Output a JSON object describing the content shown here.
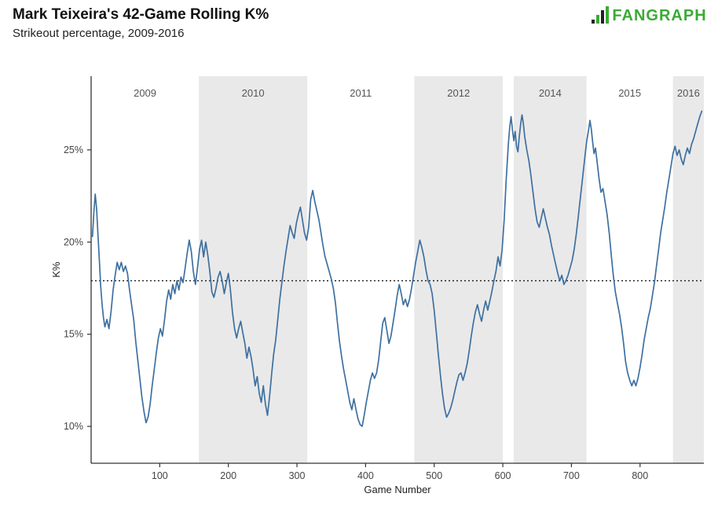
{
  "logo": {
    "text": "FANGRAPHS"
  },
  "colors": {
    "band": "#e9e9e9",
    "line": "#3e70a0",
    "axis": "#333333",
    "reference": "#1a1a1a",
    "logo_green": "#3aaa35",
    "logo_dark": "#222222"
  },
  "chart_data": {
    "type": "line",
    "title": "Mark Teixeira's 42-Game Rolling K%",
    "subtitle": "Strikeout percentage, 2009-2016",
    "xlabel": "Game Number",
    "ylabel": "K%",
    "xlim": [
      0,
      893
    ],
    "ylim": [
      8,
      29
    ],
    "x_ticks": [
      100,
      200,
      300,
      400,
      500,
      600,
      700,
      800
    ],
    "y_ticks": [
      {
        "v": 10,
        "label": "10%"
      },
      {
        "v": 15,
        "label": "15%"
      },
      {
        "v": 20,
        "label": "20%"
      },
      {
        "v": 25,
        "label": "25%"
      }
    ],
    "reference_line": {
      "value": 17.9,
      "style": "dotted"
    },
    "bands": [
      {
        "label": "2009",
        "start": 0,
        "end": 157,
        "shaded": false
      },
      {
        "label": "2010",
        "start": 157,
        "end": 315,
        "shaded": true
      },
      {
        "label": "2011",
        "start": 315,
        "end": 471,
        "shaded": false
      },
      {
        "label": "2012",
        "start": 471,
        "end": 600,
        "shaded": true
      },
      {
        "label": "",
        "start": 600,
        "end": 616,
        "shaded": false
      },
      {
        "label": "2014",
        "start": 616,
        "end": 722,
        "shaded": true
      },
      {
        "label": "2015",
        "start": 722,
        "end": 848,
        "shaded": false
      },
      {
        "label": "2016",
        "start": 848,
        "end": 893,
        "shaded": true
      }
    ],
    "series": [
      {
        "name": "42-game rolling K%",
        "color": "#3e70a0",
        "points": [
          [
            2,
            20.3
          ],
          [
            4,
            21.6
          ],
          [
            6,
            22.6
          ],
          [
            8,
            21.8
          ],
          [
            10,
            20.4
          ],
          [
            12,
            19.0
          ],
          [
            14,
            17.6
          ],
          [
            16,
            16.6
          ],
          [
            18,
            15.9
          ],
          [
            20,
            15.4
          ],
          [
            23,
            15.8
          ],
          [
            26,
            15.3
          ],
          [
            29,
            16.2
          ],
          [
            32,
            17.4
          ],
          [
            35,
            18.2
          ],
          [
            38,
            18.9
          ],
          [
            41,
            18.5
          ],
          [
            44,
            18.9
          ],
          [
            47,
            18.4
          ],
          [
            50,
            18.7
          ],
          [
            53,
            18.3
          ],
          [
            56,
            17.4
          ],
          [
            59,
            16.6
          ],
          [
            62,
            15.8
          ],
          [
            65,
            14.6
          ],
          [
            68,
            13.6
          ],
          [
            71,
            12.6
          ],
          [
            74,
            11.6
          ],
          [
            77,
            10.8
          ],
          [
            80,
            10.2
          ],
          [
            83,
            10.5
          ],
          [
            86,
            11.2
          ],
          [
            89,
            12.2
          ],
          [
            92,
            13.1
          ],
          [
            95,
            14.0
          ],
          [
            98,
            14.8
          ],
          [
            101,
            15.3
          ],
          [
            104,
            14.9
          ],
          [
            107,
            15.8
          ],
          [
            110,
            16.8
          ],
          [
            113,
            17.4
          ],
          [
            116,
            16.9
          ],
          [
            119,
            17.7
          ],
          [
            122,
            17.2
          ],
          [
            125,
            17.9
          ],
          [
            128,
            17.4
          ],
          [
            131,
            18.1
          ],
          [
            134,
            17.8
          ],
          [
            137,
            18.6
          ],
          [
            140,
            19.4
          ],
          [
            143,
            20.1
          ],
          [
            146,
            19.5
          ],
          [
            149,
            18.4
          ],
          [
            152,
            17.7
          ],
          [
            155,
            18.6
          ],
          [
            158,
            19.6
          ],
          [
            161,
            20.1
          ],
          [
            164,
            19.2
          ],
          [
            167,
            20.0
          ],
          [
            170,
            19.3
          ],
          [
            173,
            18.4
          ],
          [
            176,
            17.3
          ],
          [
            179,
            17.0
          ],
          [
            182,
            17.5
          ],
          [
            185,
            18.1
          ],
          [
            188,
            18.4
          ],
          [
            191,
            17.9
          ],
          [
            194,
            17.2
          ],
          [
            197,
            17.8
          ],
          [
            200,
            18.3
          ],
          [
            203,
            17.4
          ],
          [
            206,
            16.2
          ],
          [
            209,
            15.3
          ],
          [
            212,
            14.8
          ],
          [
            215,
            15.3
          ],
          [
            218,
            15.7
          ],
          [
            221,
            15.1
          ],
          [
            224,
            14.5
          ],
          [
            227,
            13.7
          ],
          [
            230,
            14.3
          ],
          [
            233,
            13.8
          ],
          [
            236,
            13.1
          ],
          [
            239,
            12.2
          ],
          [
            242,
            12.7
          ],
          [
            245,
            11.8
          ],
          [
            248,
            11.3
          ],
          [
            251,
            12.2
          ],
          [
            254,
            11.2
          ],
          [
            257,
            10.6
          ],
          [
            260,
            11.6
          ],
          [
            263,
            12.8
          ],
          [
            266,
            13.9
          ],
          [
            269,
            14.7
          ],
          [
            272,
            15.8
          ],
          [
            275,
            16.9
          ],
          [
            278,
            17.8
          ],
          [
            281,
            18.7
          ],
          [
            284,
            19.5
          ],
          [
            287,
            20.2
          ],
          [
            290,
            20.9
          ],
          [
            293,
            20.5
          ],
          [
            296,
            20.2
          ],
          [
            299,
            21.0
          ],
          [
            302,
            21.5
          ],
          [
            305,
            21.9
          ],
          [
            308,
            21.2
          ],
          [
            311,
            20.5
          ],
          [
            314,
            20.1
          ],
          [
            317,
            20.8
          ],
          [
            320,
            22.3
          ],
          [
            323,
            22.8
          ],
          [
            326,
            22.2
          ],
          [
            329,
            21.7
          ],
          [
            332,
            21.2
          ],
          [
            335,
            20.5
          ],
          [
            338,
            19.8
          ],
          [
            341,
            19.2
          ],
          [
            344,
            18.8
          ],
          [
            347,
            18.4
          ],
          [
            350,
            18.0
          ],
          [
            353,
            17.5
          ],
          [
            356,
            16.7
          ],
          [
            359,
            15.6
          ],
          [
            362,
            14.6
          ],
          [
            365,
            13.8
          ],
          [
            368,
            13.1
          ],
          [
            371,
            12.5
          ],
          [
            374,
            11.9
          ],
          [
            377,
            11.3
          ],
          [
            380,
            10.9
          ],
          [
            383,
            11.5
          ],
          [
            386,
            10.9
          ],
          [
            389,
            10.4
          ],
          [
            392,
            10.1
          ],
          [
            395,
            10.0
          ],
          [
            398,
            10.6
          ],
          [
            401,
            11.3
          ],
          [
            404,
            11.9
          ],
          [
            407,
            12.5
          ],
          [
            410,
            12.9
          ],
          [
            413,
            12.6
          ],
          [
            416,
            12.9
          ],
          [
            419,
            13.6
          ],
          [
            422,
            14.6
          ],
          [
            425,
            15.6
          ],
          [
            428,
            15.9
          ],
          [
            431,
            15.2
          ],
          [
            434,
            14.5
          ],
          [
            437,
            14.9
          ],
          [
            440,
            15.6
          ],
          [
            443,
            16.3
          ],
          [
            446,
            17.1
          ],
          [
            449,
            17.7
          ],
          [
            452,
            17.2
          ],
          [
            455,
            16.6
          ],
          [
            458,
            16.9
          ],
          [
            461,
            16.5
          ],
          [
            464,
            16.9
          ],
          [
            467,
            17.5
          ],
          [
            470,
            18.2
          ],
          [
            473,
            18.9
          ],
          [
            476,
            19.5
          ],
          [
            479,
            20.1
          ],
          [
            482,
            19.7
          ],
          [
            485,
            19.2
          ],
          [
            488,
            18.5
          ],
          [
            491,
            17.9
          ],
          [
            494,
            17.7
          ],
          [
            497,
            17.2
          ],
          [
            500,
            16.3
          ],
          [
            503,
            15.1
          ],
          [
            506,
            13.9
          ],
          [
            509,
            12.8
          ],
          [
            512,
            11.8
          ],
          [
            515,
            11.0
          ],
          [
            518,
            10.5
          ],
          [
            521,
            10.7
          ],
          [
            524,
            11.0
          ],
          [
            527,
            11.4
          ],
          [
            530,
            11.9
          ],
          [
            533,
            12.4
          ],
          [
            536,
            12.8
          ],
          [
            539,
            12.9
          ],
          [
            542,
            12.5
          ],
          [
            545,
            12.9
          ],
          [
            548,
            13.4
          ],
          [
            551,
            14.1
          ],
          [
            554,
            14.9
          ],
          [
            557,
            15.6
          ],
          [
            560,
            16.2
          ],
          [
            563,
            16.6
          ],
          [
            566,
            16.1
          ],
          [
            569,
            15.7
          ],
          [
            572,
            16.3
          ],
          [
            575,
            16.8
          ],
          [
            578,
            16.3
          ],
          [
            581,
            16.8
          ],
          [
            584,
            17.3
          ],
          [
            587,
            17.9
          ],
          [
            590,
            18.4
          ],
          [
            593,
            19.2
          ],
          [
            596,
            18.7
          ],
          [
            599,
            19.6
          ],
          [
            602,
            21.2
          ],
          [
            605,
            23.4
          ],
          [
            608,
            25.3
          ],
          [
            610,
            26.2
          ],
          [
            612,
            26.8
          ],
          [
            614,
            26.1
          ],
          [
            616,
            25.5
          ],
          [
            618,
            26.0
          ],
          [
            620,
            25.2
          ],
          [
            622,
            24.9
          ],
          [
            624,
            25.7
          ],
          [
            626,
            26.4
          ],
          [
            628,
            26.9
          ],
          [
            630,
            26.4
          ],
          [
            632,
            25.7
          ],
          [
            635,
            25.0
          ],
          [
            638,
            24.4
          ],
          [
            641,
            23.6
          ],
          [
            644,
            22.7
          ],
          [
            647,
            21.8
          ],
          [
            650,
            21.1
          ],
          [
            653,
            20.8
          ],
          [
            656,
            21.3
          ],
          [
            659,
            21.8
          ],
          [
            662,
            21.3
          ],
          [
            665,
            20.8
          ],
          [
            668,
            20.4
          ],
          [
            671,
            19.8
          ],
          [
            674,
            19.3
          ],
          [
            677,
            18.8
          ],
          [
            680,
            18.3
          ],
          [
            683,
            17.9
          ],
          [
            686,
            18.2
          ],
          [
            689,
            17.7
          ],
          [
            692,
            17.9
          ],
          [
            695,
            18.2
          ],
          [
            698,
            18.6
          ],
          [
            701,
            19.0
          ],
          [
            704,
            19.6
          ],
          [
            707,
            20.4
          ],
          [
            710,
            21.4
          ],
          [
            713,
            22.4
          ],
          [
            716,
            23.4
          ],
          [
            719,
            24.4
          ],
          [
            722,
            25.4
          ],
          [
            725,
            26.1
          ],
          [
            727,
            26.6
          ],
          [
            729,
            26.1
          ],
          [
            731,
            25.4
          ],
          [
            733,
            24.8
          ],
          [
            735,
            25.1
          ],
          [
            737,
            24.5
          ],
          [
            740,
            23.5
          ],
          [
            743,
            22.7
          ],
          [
            746,
            22.9
          ],
          [
            749,
            22.2
          ],
          [
            752,
            21.5
          ],
          [
            755,
            20.5
          ],
          [
            758,
            19.3
          ],
          [
            761,
            18.2
          ],
          [
            764,
            17.3
          ],
          [
            767,
            16.7
          ],
          [
            770,
            16.1
          ],
          [
            773,
            15.4
          ],
          [
            776,
            14.5
          ],
          [
            779,
            13.5
          ],
          [
            782,
            12.9
          ],
          [
            785,
            12.5
          ],
          [
            788,
            12.2
          ],
          [
            791,
            12.5
          ],
          [
            794,
            12.2
          ],
          [
            797,
            12.6
          ],
          [
            800,
            13.2
          ],
          [
            803,
            13.9
          ],
          [
            806,
            14.7
          ],
          [
            809,
            15.3
          ],
          [
            812,
            15.9
          ],
          [
            815,
            16.4
          ],
          [
            818,
            17.1
          ],
          [
            821,
            17.8
          ],
          [
            824,
            18.7
          ],
          [
            827,
            19.6
          ],
          [
            830,
            20.5
          ],
          [
            833,
            21.2
          ],
          [
            836,
            21.9
          ],
          [
            839,
            22.7
          ],
          [
            842,
            23.4
          ],
          [
            845,
            24.1
          ],
          [
            848,
            24.8
          ],
          [
            851,
            25.2
          ],
          [
            854,
            24.7
          ],
          [
            857,
            25.0
          ],
          [
            860,
            24.5
          ],
          [
            863,
            24.2
          ],
          [
            866,
            24.7
          ],
          [
            869,
            25.1
          ],
          [
            872,
            24.8
          ],
          [
            875,
            25.3
          ],
          [
            878,
            25.6
          ],
          [
            881,
            26.0
          ],
          [
            884,
            26.4
          ],
          [
            887,
            26.8
          ],
          [
            890,
            27.1
          ]
        ]
      }
    ]
  }
}
